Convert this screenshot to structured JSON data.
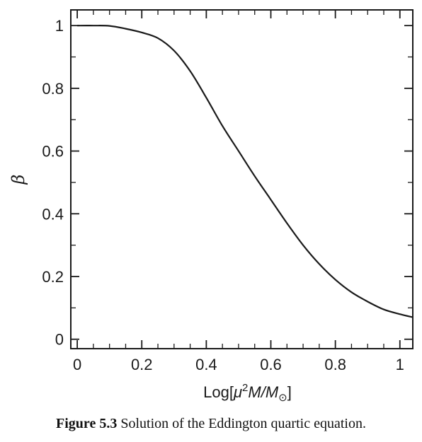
{
  "caption": {
    "label": "Figure 5.3",
    "text": "Solution of the Eddington quartic equation."
  },
  "chart_data": {
    "type": "line",
    "title": "",
    "xlabel": {
      "prefix": "Log[",
      "mu": "μ",
      "exp": "2",
      "mid": "M/M",
      "sub": "⊙",
      "suffix": "]"
    },
    "ylabel": "β",
    "xlim": [
      -0.02,
      1.04
    ],
    "ylim": [
      -0.03,
      1.05
    ],
    "xticks": [
      0,
      0.2,
      0.4,
      0.6,
      0.8,
      1
    ],
    "xtick_labels": [
      "0",
      "0.2",
      "0.4",
      "0.6",
      "0.8",
      "1"
    ],
    "yticks": [
      0,
      0.2,
      0.4,
      0.6,
      0.8,
      1
    ],
    "ytick_labels": [
      "0",
      "0.2",
      "0.4",
      "0.6",
      "0.8",
      "1"
    ],
    "grid": false,
    "series": [
      {
        "color": "#1a1a1a",
        "x": [
          0,
          0.05,
          0.1,
          0.15,
          0.2,
          0.25,
          0.3,
          0.35,
          0.4,
          0.45,
          0.5,
          0.55,
          0.6,
          0.65,
          0.7,
          0.75,
          0.8,
          0.85,
          0.9,
          0.95,
          1.0,
          1.04
        ],
        "y": [
          1.0,
          1.0,
          0.999,
          0.99,
          0.978,
          0.96,
          0.92,
          0.855,
          0.77,
          0.68,
          0.6,
          0.52,
          0.445,
          0.37,
          0.3,
          0.24,
          0.19,
          0.15,
          0.12,
          0.095,
          0.08,
          0.07
        ]
      }
    ]
  }
}
